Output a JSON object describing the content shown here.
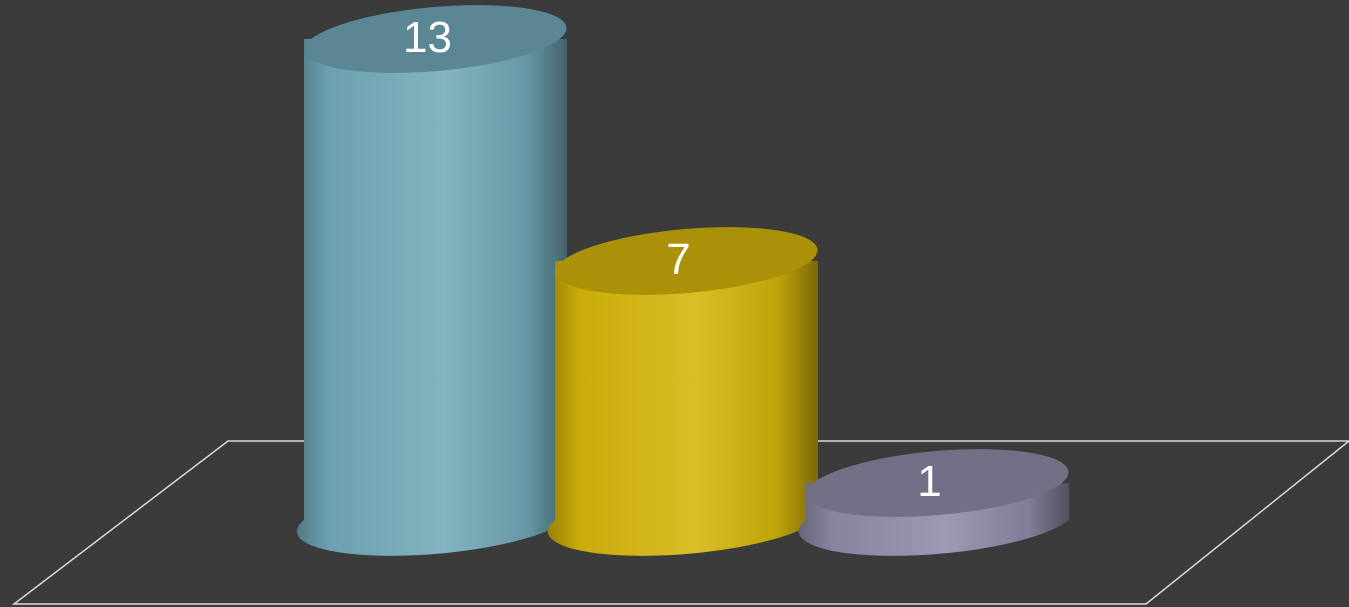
{
  "chart_data": {
    "type": "bar",
    "style": "3d-cylinder",
    "categories": [
      "",
      "",
      ""
    ],
    "values": [
      13,
      7,
      1
    ],
    "data_labels": [
      "13",
      "7",
      "1"
    ],
    "colors": [
      "#72a9b9",
      "#d4b50a",
      "#8e8ba8"
    ],
    "title": "",
    "xlabel": "",
    "ylabel": "",
    "ylim": [
      0,
      13
    ],
    "grid": false,
    "legend": "none"
  },
  "colors": {
    "background": "#3b3b3b",
    "floor_outline": "#d9d9d9"
  }
}
